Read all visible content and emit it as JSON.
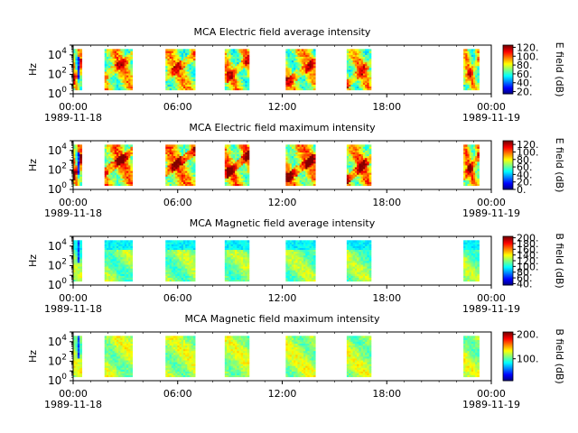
{
  "chart_data": [
    {
      "type": "heatmap",
      "title": "MCA  Electric field average intensity",
      "ylabel": "Hz",
      "yscale": "log",
      "ylim": [
        1,
        100000
      ],
      "ytick_labels": [
        "10^0",
        "10^2",
        "10^4"
      ],
      "xlim": [
        "1989-11-18 00:00",
        "1989-11-19 00:00"
      ],
      "xtick_labels": [
        "00:00",
        "06:00",
        "12:00",
        "18:00",
        "00:00"
      ],
      "xdate_labels": [
        "1989-11-18",
        "1989-11-19"
      ],
      "colorbar_label": "E field (dB)",
      "colorbar_ticks": [
        "120.",
        "100.",
        "80.",
        "60.",
        "40.",
        "20."
      ],
      "clim": [
        15,
        125
      ],
      "data_segments_hours": [
        [
          0.0,
          0.5
        ],
        [
          1.8,
          3.4
        ],
        [
          5.3,
          7.0
        ],
        [
          8.7,
          10.1
        ],
        [
          12.2,
          13.9
        ],
        [
          15.7,
          17.1
        ],
        [
          22.4,
          23.3
        ]
      ],
      "colormap": "jet"
    },
    {
      "type": "heatmap",
      "title": "MCA  Electric field maximum intensity",
      "ylabel": "Hz",
      "yscale": "log",
      "ylim": [
        1,
        100000
      ],
      "ytick_labels": [
        "10^0",
        "10^2",
        "10^4"
      ],
      "xlim": [
        "1989-11-18 00:00",
        "1989-11-19 00:00"
      ],
      "xtick_labels": [
        "00:00",
        "06:00",
        "12:00",
        "18:00",
        "00:00"
      ],
      "xdate_labels": [
        "1989-11-18",
        "1989-11-19"
      ],
      "colorbar_label": "E field (dB)",
      "colorbar_ticks": [
        "120.",
        "100.",
        "80.",
        "60.",
        "40.",
        "20.",
        "0."
      ],
      "clim": [
        0,
        130
      ],
      "data_segments_hours": [
        [
          0.0,
          0.5
        ],
        [
          1.8,
          3.4
        ],
        [
          5.3,
          7.0
        ],
        [
          8.7,
          10.1
        ],
        [
          12.2,
          13.9
        ],
        [
          15.7,
          17.1
        ],
        [
          22.4,
          23.3
        ]
      ],
      "colormap": "jet"
    },
    {
      "type": "heatmap",
      "title": "MCA  Magnetic field average intensity",
      "ylabel": "Hz",
      "yscale": "log",
      "ylim": [
        1,
        100000
      ],
      "ytick_labels": [
        "10^0",
        "10^2",
        "10^4"
      ],
      "xlim": [
        "1989-11-18 00:00",
        "1989-11-19 00:00"
      ],
      "xtick_labels": [
        "00:00",
        "06:00",
        "12:00",
        "18:00",
        "00:00"
      ],
      "xdate_labels": [
        "1989-11-18",
        "1989-11-19"
      ],
      "colorbar_label": "B field (dB)",
      "colorbar_ticks": [
        "200.",
        "180.",
        "160.",
        "140.",
        "120.",
        "100.",
        "80.",
        "60.",
        "40."
      ],
      "clim": [
        35,
        205
      ],
      "data_segments_hours": [
        [
          0.0,
          0.5
        ],
        [
          1.8,
          3.4
        ],
        [
          5.3,
          7.0
        ],
        [
          8.7,
          10.1
        ],
        [
          12.2,
          13.9
        ],
        [
          15.7,
          17.1
        ],
        [
          22.4,
          23.3
        ]
      ],
      "colormap": "jet"
    },
    {
      "type": "heatmap",
      "title": "MCA  Magnetic field maximum intensity",
      "ylabel": "Hz",
      "yscale": "log",
      "ylim": [
        1,
        100000
      ],
      "ytick_labels": [
        "10^0",
        "10^2",
        "10^4"
      ],
      "xlim": [
        "1989-11-18 00:00",
        "1989-11-19 00:00"
      ],
      "xtick_labels": [
        "00:00",
        "06:00",
        "12:00",
        "18:00",
        "00:00"
      ],
      "xdate_labels": [
        "1989-11-18",
        "1989-11-19"
      ],
      "colorbar_label": "B field (dB)",
      "colorbar_ticks": [
        "200.",
        "100."
      ],
      "clim": [
        10,
        210
      ],
      "data_segments_hours": [
        [
          0.0,
          0.5
        ],
        [
          1.8,
          3.4
        ],
        [
          5.3,
          7.0
        ],
        [
          8.7,
          10.1
        ],
        [
          12.2,
          13.9
        ],
        [
          15.7,
          17.1
        ],
        [
          22.4,
          23.3
        ]
      ],
      "colormap": "jet"
    }
  ]
}
